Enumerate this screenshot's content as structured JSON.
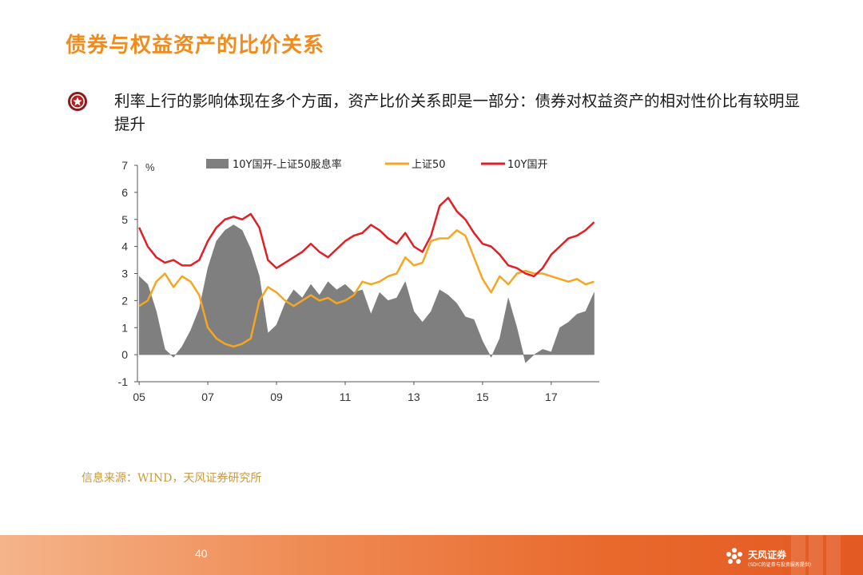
{
  "slide": {
    "title": "债券与权益资产的比价关系",
    "bullet_text": "利率上行的影响体现在多个方面，资产比价关系即是一部分：债券对权益资产的相对性价比有较明显提升",
    "source": "信息来源：WIND，天风证券研究所",
    "page_number": "40",
    "logo_name": "天风证券",
    "logo_tagline": "(SDIC的证券与投资服务提供)"
  },
  "colors": {
    "title": "#F08C1E",
    "bar": "#7F7F7F",
    "sz50": "#F5A623",
    "bond10y": "#E31E24",
    "footer": "#E9692D"
  },
  "chart_data": {
    "type": "line",
    "title": "",
    "xlabel": "",
    "ylabel": "%",
    "ylim": [
      -1,
      7
    ],
    "yticks": [
      -1,
      0,
      1,
      2,
      3,
      4,
      5,
      6,
      7
    ],
    "xticks": [
      "05",
      "07",
      "09",
      "11",
      "13",
      "15",
      "17"
    ],
    "x": [
      2005.0,
      2005.25,
      2005.5,
      2005.75,
      2006.0,
      2006.25,
      2006.5,
      2006.75,
      2007.0,
      2007.25,
      2007.5,
      2007.75,
      2008.0,
      2008.25,
      2008.5,
      2008.75,
      2009.0,
      2009.25,
      2009.5,
      2009.75,
      2010.0,
      2010.25,
      2010.5,
      2010.75,
      2011.0,
      2011.25,
      2011.5,
      2011.75,
      2012.0,
      2012.25,
      2012.5,
      2012.75,
      2013.0,
      2013.25,
      2013.5,
      2013.75,
      2014.0,
      2014.25,
      2014.5,
      2014.75,
      2015.0,
      2015.25,
      2015.5,
      2015.75,
      2016.0,
      2016.25,
      2016.5,
      2016.75,
      2017.0,
      2017.25,
      2017.5,
      2017.75,
      2018.0,
      2018.25
    ],
    "legend_position": "top",
    "series": [
      {
        "name": "10Y国开-上证50股息率",
        "kind": "area",
        "values": [
          2.9,
          2.6,
          1.6,
          0.2,
          -0.1,
          0.3,
          0.9,
          1.7,
          3.2,
          4.2,
          4.6,
          4.8,
          4.6,
          3.9,
          2.9,
          0.8,
          1.1,
          1.9,
          2.4,
          2.1,
          2.6,
          2.2,
          2.7,
          2.4,
          2.6,
          2.3,
          2.4,
          1.5,
          2.3,
          2.0,
          2.1,
          2.7,
          1.6,
          1.2,
          1.6,
          2.4,
          2.2,
          1.9,
          1.4,
          1.3,
          0.5,
          -0.1,
          0.6,
          2.1,
          1.0,
          -0.3,
          0.0,
          0.2,
          0.1,
          1.0,
          1.2,
          1.5,
          1.6,
          2.3
        ]
      },
      {
        "name": "上证50",
        "kind": "line",
        "values": [
          1.8,
          2.0,
          2.7,
          3.0,
          2.5,
          2.9,
          2.7,
          2.2,
          1.0,
          0.6,
          0.4,
          0.3,
          0.4,
          0.6,
          2.0,
          2.5,
          2.3,
          2.0,
          1.8,
          2.0,
          2.2,
          2.0,
          2.1,
          1.9,
          2.0,
          2.2,
          2.7,
          2.6,
          2.7,
          2.9,
          3.0,
          3.6,
          3.3,
          3.4,
          4.2,
          4.3,
          4.3,
          4.6,
          4.4,
          3.6,
          2.8,
          2.3,
          2.9,
          2.6,
          3.0,
          3.1,
          3.0,
          3.0,
          2.9,
          2.8,
          2.7,
          2.8,
          2.6,
          2.7
        ]
      },
      {
        "name": "10Y国开",
        "kind": "line",
        "values": [
          4.7,
          4.0,
          3.6,
          3.4,
          3.5,
          3.3,
          3.3,
          3.5,
          4.2,
          4.7,
          5.0,
          5.1,
          5.0,
          5.2,
          4.7,
          3.5,
          3.2,
          3.4,
          3.6,
          3.8,
          4.1,
          3.8,
          3.6,
          3.9,
          4.2,
          4.4,
          4.5,
          4.8,
          4.6,
          4.3,
          4.1,
          4.5,
          4.0,
          3.8,
          4.4,
          5.5,
          5.8,
          5.3,
          5.0,
          4.5,
          4.1,
          4.0,
          3.7,
          3.3,
          3.2,
          3.0,
          2.9,
          3.2,
          3.7,
          4.0,
          4.3,
          4.4,
          4.6,
          4.9
        ]
      }
    ]
  }
}
